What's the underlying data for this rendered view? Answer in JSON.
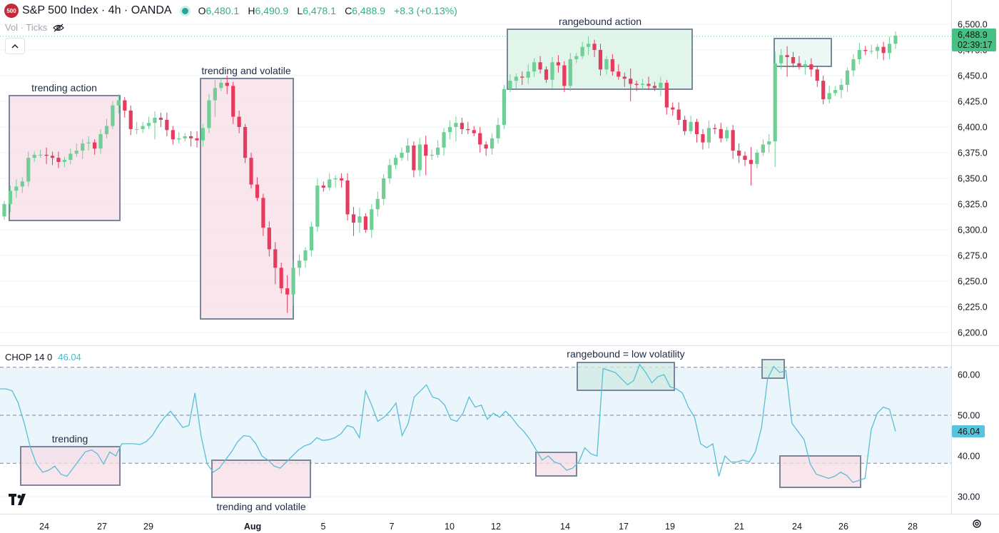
{
  "header": {
    "logo_text": "500",
    "title": "S&P 500 Index · 4h · OANDA",
    "open_label": "O",
    "open_value": "6,480.1",
    "high_label": "H",
    "high_value": "6,490.9",
    "low_label": "L",
    "low_value": "6,478.1",
    "close_label": "C",
    "close_value": "6,488.9",
    "change": "+8.3 (+0.13%)"
  },
  "volume_toggle": "Vol · Ticks",
  "indicator": {
    "name": "CHOP 14 0",
    "value": "46.04"
  },
  "price_badge": {
    "price": "6,488.9",
    "countdown": "02:39:17"
  },
  "chop_badge": "46.04",
  "colors": {
    "up": "#6fcf97",
    "down": "#e63b5f",
    "chop_line": "#58bfd6",
    "box_border": "#7a8699"
  },
  "chart_data": [
    {
      "type": "candlestick",
      "title": "",
      "yaxis_ticks": [
        "6,200.0",
        "6,225.0",
        "6,250.0",
        "6,275.0",
        "6,300.0",
        "6,325.0",
        "6,350.0",
        "6,375.0",
        "6,400.0",
        "6,425.0",
        "6,450.0",
        "6,475.0",
        "6,500.0"
      ],
      "ylim": [
        6190,
        6510
      ],
      "xaxis_ticks": [
        "24",
        "27",
        "29",
        "Aug",
        "5",
        "7",
        "10",
        "12",
        "14",
        "17",
        "19",
        "21",
        "24",
        "26",
        "28"
      ],
      "series_close": [
        6325,
        6338,
        6342,
        6347,
        6370,
        6373,
        6373,
        6372,
        6370,
        6366,
        6368,
        6374,
        6377,
        6384,
        6385,
        6379,
        6393,
        6401,
        6421,
        6426,
        6416,
        6398,
        6398,
        6401,
        6404,
        6409,
        6407,
        6397,
        6388,
        6389,
        6391,
        6389,
        6387,
        6399,
        6426,
        6438,
        6443,
        6440,
        6410,
        6400,
        6370,
        6344,
        6331,
        6302,
        6281,
        6263,
        6243,
        6237,
        6263,
        6270,
        6280,
        6303,
        6343,
        6341,
        6349,
        6350,
        6348,
        6315,
        6307,
        6313,
        6300,
        6320,
        6330,
        6350,
        6363,
        6370,
        6375,
        6382,
        6358,
        6383,
        6372,
        6373,
        6380,
        6395,
        6400,
        6404,
        6398,
        6397,
        6394,
        6383,
        6379,
        6389,
        6402,
        6437,
        6445,
        6449,
        6448,
        6454,
        6463,
        6456,
        6446,
        6463,
        6460,
        6440,
        6466,
        6469,
        6478,
        6481,
        6475,
        6456,
        6466,
        6454,
        6449,
        6447,
        6442,
        6441,
        6442,
        6440,
        6438,
        6443,
        6419,
        6417,
        6407,
        6396,
        6405,
        6393,
        6385,
        6399,
        6398,
        6389,
        6397,
        6377,
        6372,
        6368,
        6364,
        6375,
        6383,
        6386,
        6462,
        6470,
        6468,
        6462,
        6459,
        6461,
        6456,
        6445,
        6427,
        6433,
        6436,
        6441,
        6455,
        6466,
        6475,
        6474,
        6474,
        6478,
        6472,
        6481,
        6489
      ],
      "annotations": [
        "trending action",
        "trending and volatile",
        "rangebound action"
      ]
    },
    {
      "type": "line",
      "title": "",
      "name": "CHOP 14 0",
      "yaxis_ticks": [
        "30.00",
        "40.00",
        "50.00",
        "60.00"
      ],
      "levels": [
        61.8,
        38.2,
        50
      ],
      "ylim": [
        28,
        65
      ],
      "values": [
        56.5,
        56.5,
        56,
        53,
        48,
        42,
        38,
        36,
        36.5,
        37.5,
        35.5,
        35,
        37,
        39,
        41,
        41.5,
        40.5,
        38,
        41,
        40,
        43,
        43,
        43,
        42.8,
        43.5,
        45,
        47.5,
        49.5,
        51,
        49,
        47,
        47.5,
        55.5,
        45,
        38,
        36,
        37,
        39,
        41,
        43.5,
        45,
        44.8,
        43,
        40,
        39,
        37.5,
        37,
        38.5,
        40,
        41.5,
        42.5,
        43,
        44.5,
        43.8,
        44,
        44.5,
        45.5,
        47.5,
        47,
        44.5,
        56,
        52.5,
        48.5,
        49.5,
        51,
        53,
        45,
        48,
        54.5,
        56,
        57.5,
        54.5,
        54,
        52.5,
        49,
        48.5,
        50.5,
        54.5,
        52,
        52.5,
        49,
        50.5,
        49.5,
        51,
        49.5,
        47.5,
        46,
        44,
        41.5,
        39,
        40,
        38.5,
        38,
        36.5,
        37,
        38.5,
        42,
        40.5,
        40,
        61.5,
        61,
        60.5,
        59,
        57.5,
        58.5,
        62.5,
        60.5,
        58,
        59.5,
        60,
        57,
        56.5,
        55.5,
        52,
        49.5,
        43,
        42,
        43,
        35,
        40,
        38.5,
        38.5,
        39,
        38.5,
        41,
        47,
        59,
        62,
        60.5,
        61,
        48,
        46,
        44,
        38,
        35.5,
        35,
        34.5,
        35,
        36,
        35.2,
        33.5,
        34,
        34.5,
        46.5,
        50.5,
        52,
        51.5,
        46.04
      ],
      "annotations": [
        "trending",
        "trending and volatile",
        "rangebound = low volatility"
      ]
    }
  ]
}
